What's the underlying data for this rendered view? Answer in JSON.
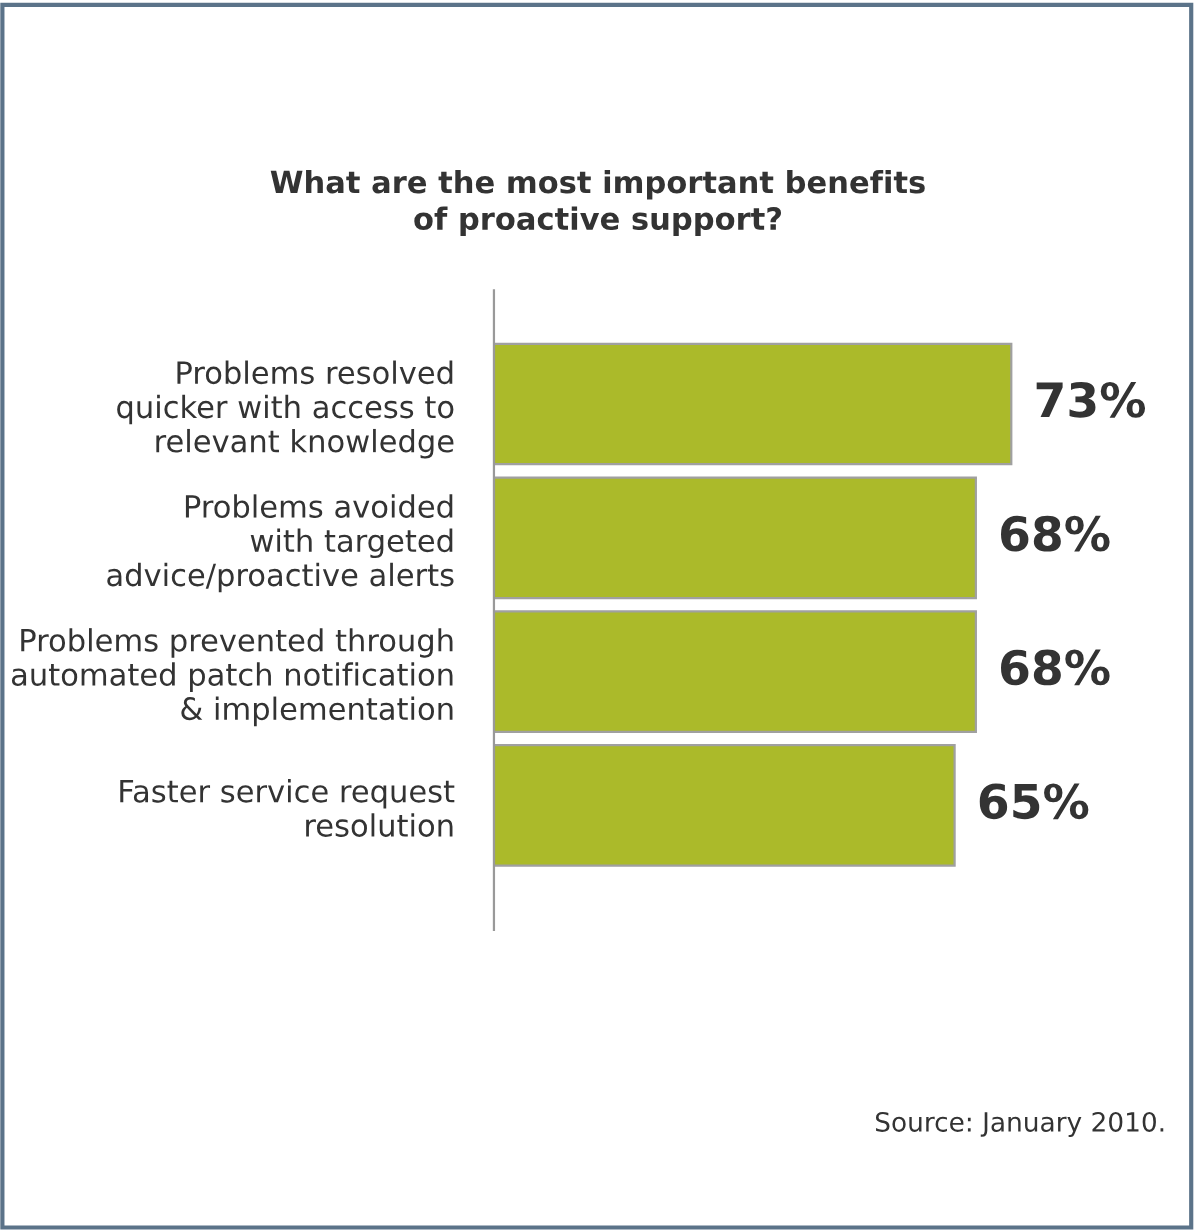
{
  "chart_data": {
    "type": "bar",
    "orientation": "horizontal",
    "title": "What are the most important benefits\nof proactive support?",
    "categories": [
      "Problems resolved\nquicker with access to\nrelevant knowledge",
      "Problems avoided\nwith targeted\nadvice/proactive alerts",
      "Problems prevented through\nautomated patch notification\n& implementation",
      "Faster service request\nresolution"
    ],
    "values": [
      73,
      68,
      68,
      65
    ],
    "color": "#abba2a",
    "value_labels": [
      "73%",
      "68%",
      "68%",
      "65%"
    ],
    "annotations": [
      "Source: January 2010."
    ],
    "grid": false,
    "legend": false
  }
}
